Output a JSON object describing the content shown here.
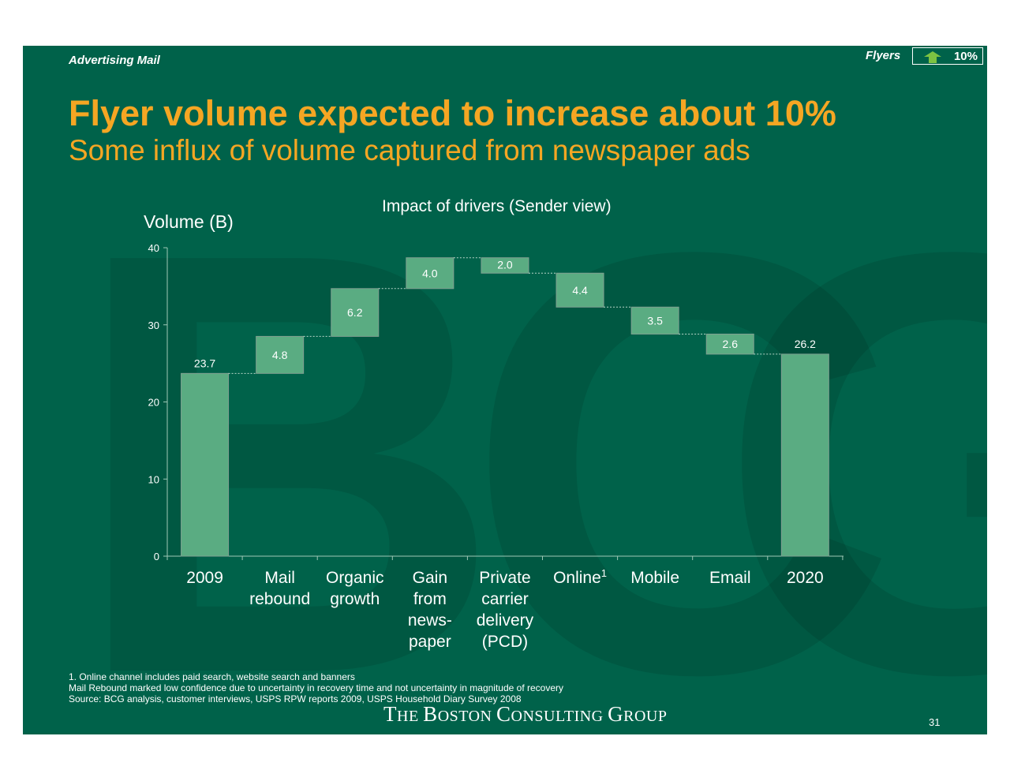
{
  "header": {
    "section": "Advertising  Mail",
    "flyers_label": "Flyers",
    "badge_value": "10%",
    "badge_icon": "up-arrow-icon",
    "badge_icon_color": "#7dc242"
  },
  "title": "Flyer volume expected to increase about 10%",
  "subtitle": "Some influx of volume captured from newspaper ads",
  "colors": {
    "background": "#00624a",
    "bar": "#5aac82",
    "accent": "#f5a623"
  },
  "chart_data": {
    "type": "bar",
    "subtype": "waterfall",
    "title": "Impact of drivers (Sender view)",
    "ylabel": "Volume (B)",
    "xlabel": "",
    "ylim": [
      0,
      40
    ],
    "yticks": [
      0,
      10,
      20,
      30,
      40
    ],
    "categories": [
      [
        "2009"
      ],
      [
        "Mail",
        "rebound"
      ],
      [
        "Organic",
        "growth"
      ],
      [
        "Gain",
        "from",
        "news-",
        "paper"
      ],
      [
        "Private",
        "carrier",
        "delivery",
        "(PCD)"
      ],
      [
        "Online"
      ],
      [
        "Mobile"
      ],
      [
        "Email"
      ],
      [
        "2020"
      ]
    ],
    "category_superscripts": [
      "",
      "",
      "",
      "",
      "",
      "1",
      "",
      "",
      ""
    ],
    "steps": [
      {
        "kind": "total",
        "value": 23.7,
        "label": "23.7"
      },
      {
        "kind": "increase",
        "value": 4.8,
        "label": "4.8"
      },
      {
        "kind": "increase",
        "value": 6.2,
        "label": "6.2"
      },
      {
        "kind": "increase",
        "value": 4.0,
        "label": "4.0"
      },
      {
        "kind": "decrease",
        "value": 2.0,
        "label": "2.0"
      },
      {
        "kind": "decrease",
        "value": 4.4,
        "label": "4.4"
      },
      {
        "kind": "decrease",
        "value": 3.5,
        "label": "3.5"
      },
      {
        "kind": "decrease",
        "value": 2.6,
        "label": "2.6"
      },
      {
        "kind": "total",
        "value": 26.2,
        "label": "26.2"
      }
    ],
    "grid": false,
    "legend": "none"
  },
  "footnotes": [
    "1. Online channel includes paid search, website search and banners",
    "Mail Rebound marked low confidence due to uncertainty in recovery time and not uncertainty in magnitude of recovery",
    "Source: BCG analysis, customer interviews, USPS RPW reports 2009, USPS Household Diary Survey 2008"
  ],
  "logo_text": "THE BOSTON CONSULTING GROUP",
  "page_number": "31"
}
